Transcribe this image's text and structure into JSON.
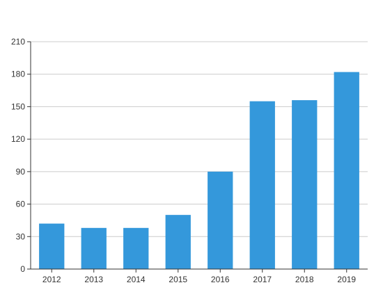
{
  "chart_data": {
    "type": "bar",
    "title": "",
    "xlabel": "",
    "ylabel": "",
    "categories": [
      "2012",
      "2013",
      "2014",
      "2015",
      "2016",
      "2017",
      "2018",
      "2019"
    ],
    "values": [
      42,
      38,
      38,
      50,
      90,
      155,
      156,
      182
    ],
    "ylim": [
      0,
      210
    ],
    "yticks": [
      0,
      30,
      60,
      90,
      120,
      150,
      180,
      210
    ],
    "grid": true,
    "legend": "none",
    "bar_color": "#3498db",
    "grid_color": "#cccccc",
    "axis_color": "#333333"
  }
}
